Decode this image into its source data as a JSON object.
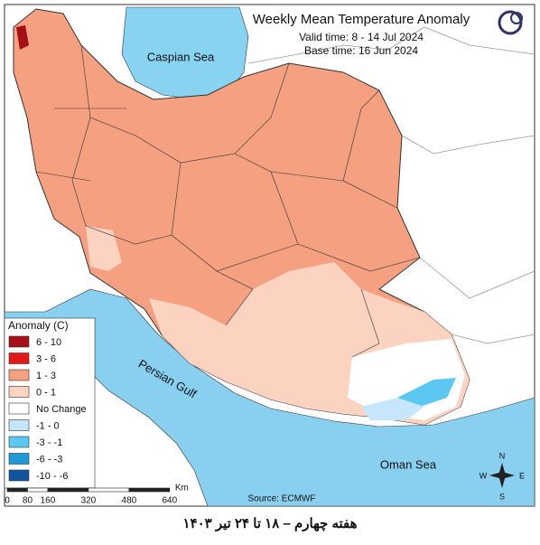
{
  "map": {
    "title": "Weekly Mean Temperature Anomaly",
    "valid_time": "Valid time: 8 - 14 Jul 2024",
    "base_time": "Base time: 16 Jun 2024",
    "labels": {
      "caspian": "Caspian Sea",
      "gulf": "Persian Gulf",
      "oman": "Oman Sea"
    },
    "legend": {
      "title": "Anomaly (C)",
      "items": [
        {
          "label": "6 - 10",
          "color": "#a50f15"
        },
        {
          "label": "3 - 6",
          "color": "#e31a1c"
        },
        {
          "label": "1 - 3",
          "color": "#f4a081"
        },
        {
          "label": "0 - 1",
          "color": "#fcd3c1"
        },
        {
          "label": "No Change",
          "color": "#ffffff"
        },
        {
          "label": "-1 - 0",
          "color": "#c6e7fb"
        },
        {
          "label": "-3 - -1",
          "color": "#5cc7f0"
        },
        {
          "label": "-6 - -3",
          "color": "#1e9bd7"
        },
        {
          "label": "-10 - -6",
          "color": "#12539e"
        }
      ]
    },
    "scale_bar": {
      "unit": "Km",
      "ticks": [
        0,
        80,
        160,
        320,
        480,
        640
      ]
    },
    "source": "Source: ECMWF",
    "compass": {
      "n": "N",
      "e": "E",
      "s": "S",
      "w": "W"
    },
    "caption": "هفته چهارم – ۱۸ تا ۲۴ تیر ۱۴۰۳"
  }
}
